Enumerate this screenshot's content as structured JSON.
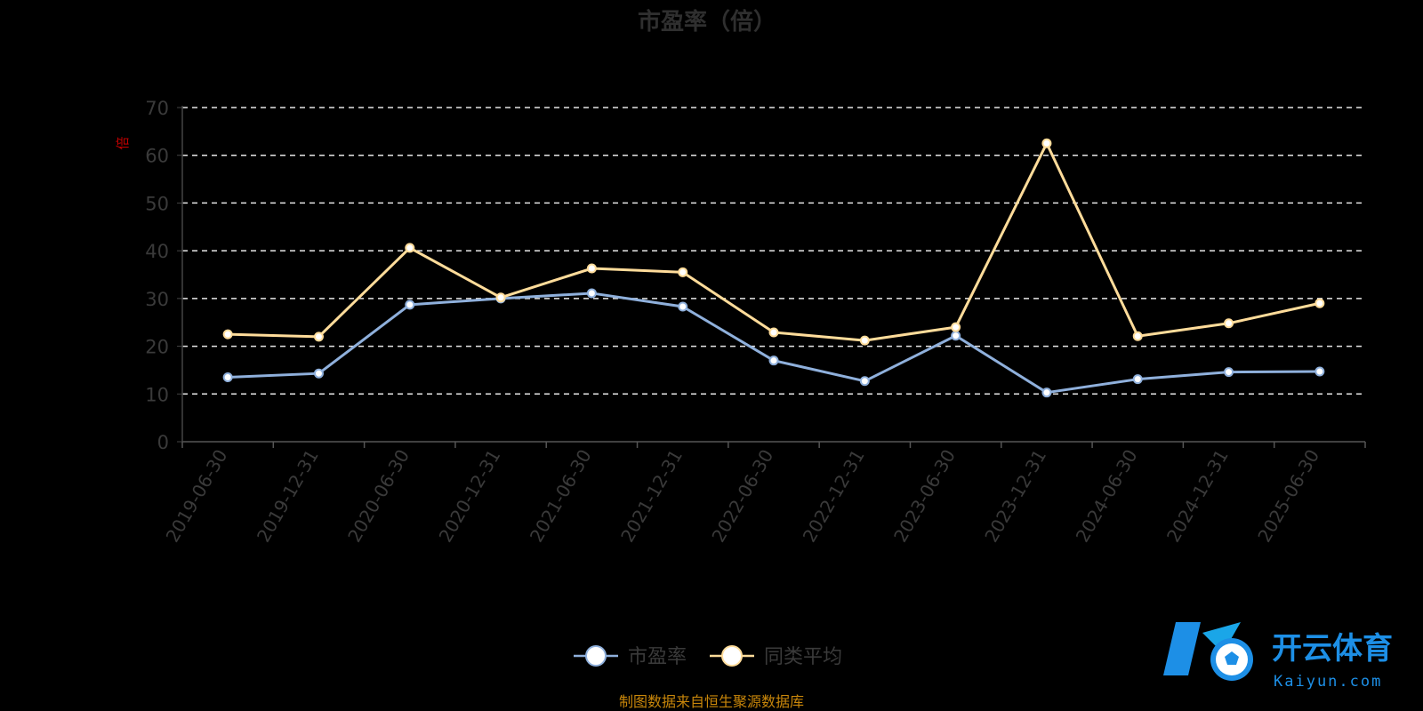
{
  "chart_data": {
    "type": "line",
    "title": "市盈率（倍）",
    "ylabel": "倍",
    "ylim": [
      0,
      70
    ],
    "yticks": [
      0,
      10,
      20,
      30,
      40,
      50,
      60,
      70
    ],
    "grid": true,
    "legend_position": "bottom-center",
    "categories": [
      "2019-06-30",
      "2019-12-31",
      "2020-06-30",
      "2020-12-31",
      "2021-06-30",
      "2021-12-31",
      "2022-06-30",
      "2022-12-31",
      "2023-06-30",
      "2023-12-31",
      "2024-06-30",
      "2024-12-31",
      "2025-06-30"
    ],
    "series": [
      {
        "name": "市盈率",
        "color": "#8fb0dc",
        "values": [
          13.5,
          14.3,
          28.7,
          30.0,
          31.1,
          28.3,
          17.0,
          12.7,
          22.2,
          10.3,
          13.1,
          14.6,
          14.7
        ]
      },
      {
        "name": "同类平均",
        "color": "#ffdc9a",
        "values": [
          22.5,
          22.0,
          40.6,
          30.2,
          36.3,
          35.5,
          22.9,
          21.2,
          24.0,
          62.5,
          22.1,
          24.8,
          29.0
        ]
      }
    ]
  },
  "source_note": "制图数据来自恒生聚源数据库",
  "watermark": {
    "brand": "开云体育",
    "domain": "Kaiyun.com"
  }
}
